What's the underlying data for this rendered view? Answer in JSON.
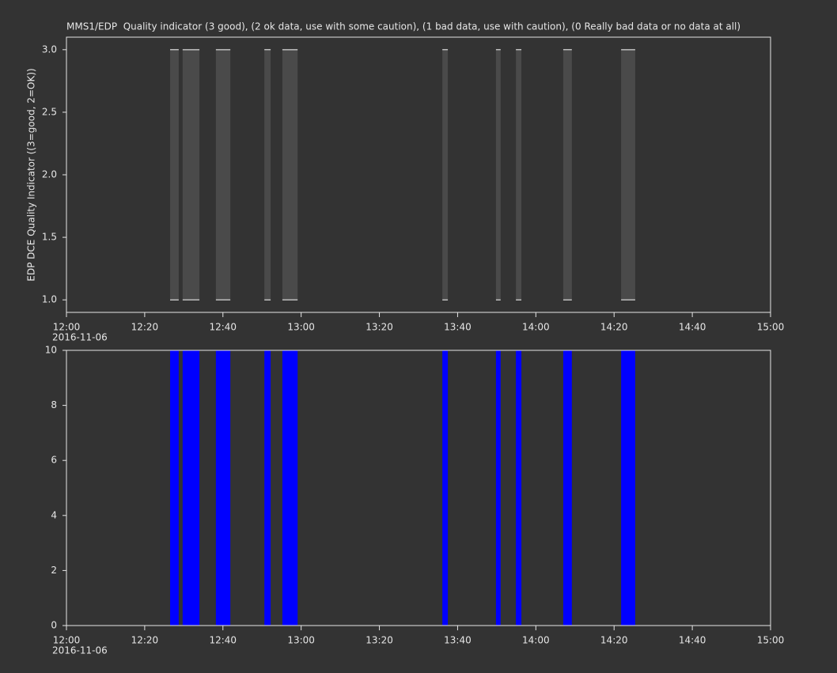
{
  "chart_data": [
    {
      "type": "range",
      "title": "MMS1/EDP  Quality indicator (3 good), (2 ok data, use with some caution), (1 bad data, use with caution), (0 Really bad data or no data at all)",
      "y_label": "EDP DCE Quality Indicator ((3=good, 2=OK))",
      "date": "2016-11-06",
      "xlim": [
        0,
        180
      ],
      "xticks": [
        {
          "value": 0,
          "label": "12:00"
        },
        {
          "value": 20,
          "label": "12:20"
        },
        {
          "value": 40,
          "label": "12:40"
        },
        {
          "value": 60,
          "label": "13:00"
        },
        {
          "value": 80,
          "label": "13:20"
        },
        {
          "value": 100,
          "label": "13:40"
        },
        {
          "value": 120,
          "label": "14:00"
        },
        {
          "value": 140,
          "label": "14:20"
        },
        {
          "value": 160,
          "label": "14:40"
        },
        {
          "value": 180,
          "label": "15:00"
        }
      ],
      "ylim": [
        0.9,
        3.1
      ],
      "yticks": [
        {
          "value": 1,
          "label": "1.0"
        },
        {
          "value": 1.5,
          "label": "1.5"
        },
        {
          "value": 2,
          "label": "2.0"
        },
        {
          "value": 2.5,
          "label": "2.5"
        },
        {
          "value": 3,
          "label": "3.0"
        }
      ],
      "color": "#4a4a4a",
      "edge_color": "#ffffff",
      "start": [
        26.5,
        29.7,
        38.2,
        50.6,
        55.2,
        96.1,
        109.8,
        114.9,
        127.0,
        141.8
      ],
      "end": [
        28.7,
        34.0,
        41.9,
        52.2,
        59.1,
        97.5,
        111.0,
        116.3,
        129.2,
        145.4
      ],
      "low": [
        1,
        1,
        1,
        1,
        1,
        1,
        1,
        1,
        1,
        1
      ],
      "high": [
        3,
        3,
        3,
        3,
        3,
        3,
        3,
        3,
        3,
        3
      ]
    },
    {
      "type": "bar",
      "date": "2016-11-06",
      "xlim": [
        0,
        180
      ],
      "xticks": [
        {
          "value": 0,
          "label": "12:00"
        },
        {
          "value": 20,
          "label": "12:20"
        },
        {
          "value": 40,
          "label": "12:40"
        },
        {
          "value": 60,
          "label": "13:00"
        },
        {
          "value": 80,
          "label": "13:20"
        },
        {
          "value": 100,
          "label": "13:40"
        },
        {
          "value": 120,
          "label": "14:00"
        },
        {
          "value": 140,
          "label": "14:20"
        },
        {
          "value": 160,
          "label": "14:40"
        },
        {
          "value": 180,
          "label": "15:00"
        }
      ],
      "ylim": [
        0,
        10
      ],
      "yticks": [
        0,
        2,
        4,
        6,
        8,
        10
      ],
      "color": "#0000ff",
      "start": [
        26.5,
        29.7,
        38.2,
        50.6,
        55.2,
        96.1,
        109.8,
        114.9,
        127.0,
        141.8
      ],
      "end": [
        28.7,
        34.0,
        41.9,
        52.2,
        59.1,
        97.5,
        111.0,
        116.3,
        129.2,
        145.4
      ],
      "values": [
        10,
        10,
        10,
        10,
        10,
        10,
        10,
        10,
        10,
        10
      ]
    }
  ]
}
